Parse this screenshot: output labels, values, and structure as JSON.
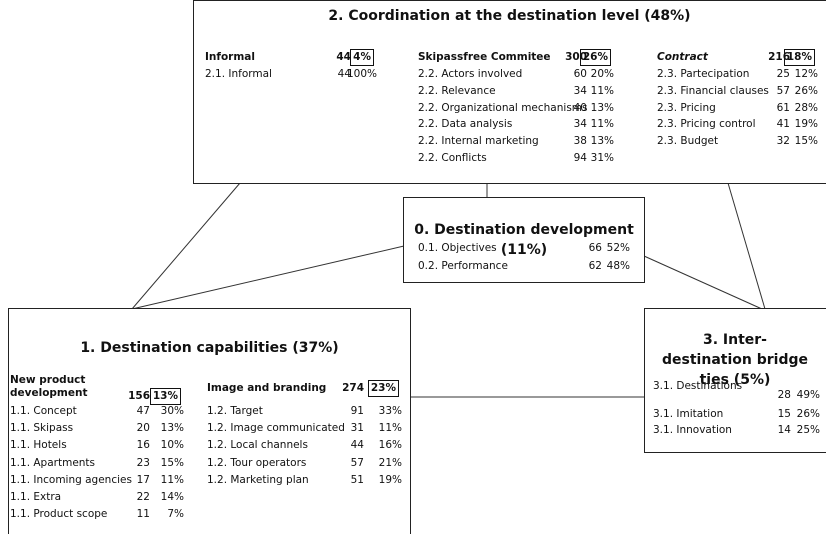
{
  "coordination": {
    "title": "2. Coordination at the destination level (48%)",
    "groups": [
      {
        "header": "Informal",
        "count": "44",
        "share": "4%",
        "rows": [
          {
            "label": "2.1. Informal",
            "count": "44",
            "share": "100%"
          }
        ]
      },
      {
        "header": "Skipassfree Commitee",
        "count": "300",
        "share": "26%",
        "rows": [
          {
            "label": "2.2. Actors involved",
            "count": "60",
            "share": "20%"
          },
          {
            "label": "2.2. Relevance",
            "count": "34",
            "share": "11%"
          },
          {
            "label": "2.2. Organizational mechanisms",
            "count": "40",
            "share": "13%"
          },
          {
            "label": "2.2. Data analysis",
            "count": "34",
            "share": "11%"
          },
          {
            "label": "2.2. Internal marketing",
            "count": "38",
            "share": "13%"
          },
          {
            "label": "2.2. Conflicts",
            "count": "94",
            "share": "31%"
          }
        ]
      },
      {
        "header": "Contract",
        "count": "216",
        "share": "18%",
        "rows": [
          {
            "label": "2.3. Partecipation",
            "count": "25",
            "share": "12%"
          },
          {
            "label": "2.3. Financial clauses",
            "count": "57",
            "share": "26%"
          },
          {
            "label": "2.3. Pricing",
            "count": "61",
            "share": "28%"
          },
          {
            "label": "2.3. Pricing control",
            "count": "41",
            "share": "19%"
          },
          {
            "label": "2.3. Budget",
            "count": "32",
            "share": "15%"
          }
        ]
      }
    ]
  },
  "development": {
    "title": "0. Destination development (11%)",
    "rows": [
      {
        "label": "0.1. Objectives",
        "count": "66",
        "share": "52%"
      },
      {
        "label": "0.2. Performance",
        "count": "62",
        "share": "48%"
      }
    ]
  },
  "capabilities": {
    "title": "1. Destination capabilities (37%)",
    "groups": [
      {
        "header": "New product development",
        "count": "156",
        "share": "13%",
        "rows": [
          {
            "label": "1.1. Concept",
            "count": "47",
            "share": "30%"
          },
          {
            "label": "1.1. Skipass",
            "count": "20",
            "share": "13%"
          },
          {
            "label": "1.1. Hotels",
            "count": "16",
            "share": "10%"
          },
          {
            "label": "1.1. Apartments",
            "count": "23",
            "share": "15%"
          },
          {
            "label": "1.1. Incoming agencies",
            "count": "17",
            "share": "11%"
          },
          {
            "label": "1.1. Extra",
            "count": "22",
            "share": "14%"
          },
          {
            "label": "1.1. Product scope",
            "count": "11",
            "share": "7%"
          }
        ]
      },
      {
        "header": "Image and branding",
        "count": "274",
        "share": "23%",
        "rows": [
          {
            "label": "1.2. Target",
            "count": "91",
            "share": "33%"
          },
          {
            "label": "1.2. Image communicated",
            "count": "31",
            "share": "11%"
          },
          {
            "label": "1.2. Local channels",
            "count": "44",
            "share": "16%"
          },
          {
            "label": "1.2. Tour operators",
            "count": "57",
            "share": "21%"
          },
          {
            "label": "1.2. Marketing plan",
            "count": "51",
            "share": "19%"
          }
        ]
      }
    ]
  },
  "bridge": {
    "title": "3. Inter-destination bridge ties (5%)",
    "rows": [
      {
        "label": "3.1. Destinations",
        "count": "28",
        "share": "49%"
      },
      {
        "label": "3.1. Imitation",
        "count": "15",
        "share": "26%"
      },
      {
        "label": "3.1. Innovation",
        "count": "14",
        "share": "25%"
      }
    ]
  }
}
